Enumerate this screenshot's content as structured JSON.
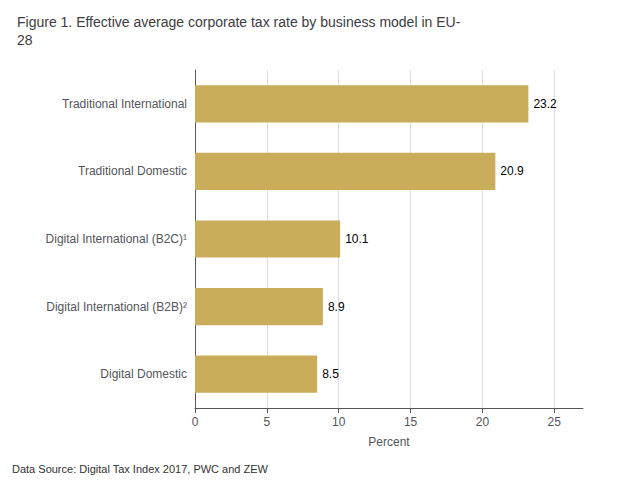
{
  "chart_data": {
    "type": "bar",
    "orientation": "horizontal",
    "title": "Figure 1. Effective average corporate tax rate by business model in EU-\n28",
    "categories": [
      "Digital Domestic",
      "Digital International (B2B)²",
      "Digital International (B2C)¹",
      "Traditional Domestic",
      "Traditional International"
    ],
    "values": [
      8.5,
      8.9,
      10.1,
      20.9,
      23.2
    ],
    "color": "#C9AD5A",
    "xlabel": "Percent",
    "xlim": [
      0,
      27
    ],
    "xticks": [
      0,
      5,
      10,
      15,
      20,
      25
    ],
    "grid": true,
    "data_labels": true,
    "annotations": [
      "Data Source: Digital Tax Index 2017, PWC and ZEW"
    ]
  }
}
